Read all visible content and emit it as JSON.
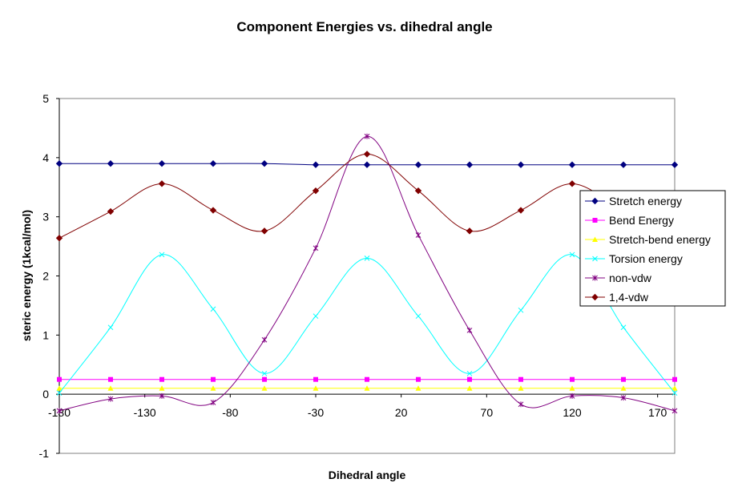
{
  "chart_data": {
    "type": "line",
    "title": "Component Energies vs. dihedral angle",
    "xlabel": "Dihedral angle",
    "ylabel": "steric energy (1kcal/mol)",
    "xlim": [
      -180,
      180
    ],
    "ylim": [
      -1,
      5
    ],
    "xticks": [
      -180,
      -130,
      -80,
      -30,
      20,
      70,
      120,
      170
    ],
    "yticks": [
      -1,
      0,
      1,
      2,
      3,
      4,
      5
    ],
    "grid": false,
    "legend_position": "right",
    "x": [
      -180,
      -150,
      -120,
      -90,
      -60,
      -30,
      0,
      30,
      60,
      90,
      120,
      150,
      180
    ],
    "series": [
      {
        "name": "Stretch energy",
        "color": "#000080",
        "marker": "diamond",
        "values": [
          3.9,
          3.9,
          3.9,
          3.9,
          3.9,
          3.88,
          3.88,
          3.88,
          3.88,
          3.88,
          3.88,
          3.88,
          3.88
        ]
      },
      {
        "name": "Bend Energy",
        "color": "#ff00ff",
        "marker": "square",
        "values": [
          0.25,
          0.25,
          0.25,
          0.25,
          0.25,
          0.25,
          0.25,
          0.25,
          0.25,
          0.25,
          0.25,
          0.25,
          0.25
        ]
      },
      {
        "name": "Stretch-bend energy",
        "color": "#ffff00",
        "marker": "triangle",
        "values": [
          0.1,
          0.1,
          0.1,
          0.1,
          0.1,
          0.1,
          0.1,
          0.1,
          0.1,
          0.1,
          0.1,
          0.1,
          0.1
        ]
      },
      {
        "name": "Torsion energy",
        "color": "#00ffff",
        "marker": "x",
        "values": [
          0.02,
          1.13,
          2.36,
          1.44,
          0.35,
          1.32,
          2.3,
          1.32,
          0.35,
          1.42,
          2.36,
          1.13,
          0.02
        ]
      },
      {
        "name": "non-vdw",
        "color": "#800080",
        "marker": "star",
        "values": [
          -0.28,
          -0.08,
          -0.03,
          -0.14,
          0.92,
          2.47,
          4.36,
          2.69,
          1.08,
          -0.17,
          -0.03,
          -0.06,
          -0.28
        ]
      },
      {
        "name": "1,4-vdw",
        "color": "#800000",
        "marker": "diamond",
        "values": [
          2.64,
          3.09,
          3.56,
          3.11,
          2.76,
          3.44,
          4.06,
          3.44,
          2.76,
          3.11,
          3.56,
          3.09,
          2.64
        ]
      }
    ]
  }
}
